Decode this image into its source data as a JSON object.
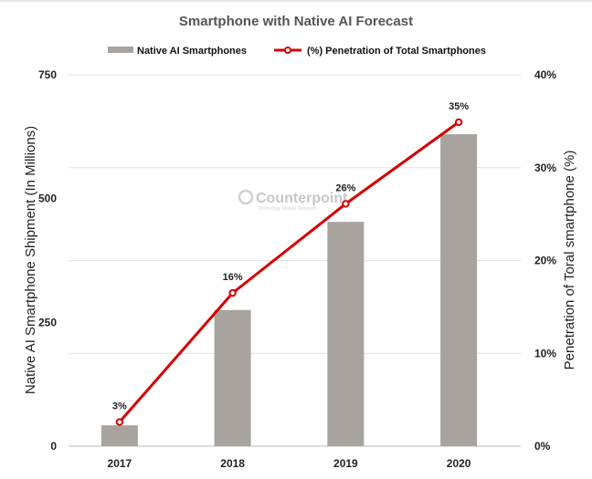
{
  "chart_data": {
    "type": "bar+line",
    "title": "Smartphone with Native AI Forecast",
    "categories": [
      "2017",
      "2018",
      "2019",
      "2020"
    ],
    "series": [
      {
        "name": "Native AI Smartphones",
        "type": "bar",
        "axis": "left",
        "values": [
          42,
          275,
          453,
          630
        ],
        "color": "#a8a49d"
      },
      {
        "name": "(%) Penetration of Total Smartphones",
        "type": "line",
        "axis": "right",
        "values": [
          2.6,
          16.5,
          26.1,
          34.9
        ],
        "labels": [
          "3%",
          "16%",
          "26%",
          "35%"
        ],
        "color": "#d50000"
      }
    ],
    "ylabel": "Native AI Smartphone Shipment (In Millions)",
    "y2label": "Penetration of Toral smartphone (%)",
    "ylim": [
      0,
      750
    ],
    "y2lim": [
      0,
      40
    ],
    "yticks": [
      "0",
      "250",
      "500",
      "750"
    ],
    "y2ticks": [
      "0%",
      "10%",
      "20%",
      "30%",
      "40%"
    ],
    "legend": "top",
    "grid": true
  },
  "watermark": {
    "brand": "Counterpoint",
    "tagline": "Technology Market Research"
  }
}
